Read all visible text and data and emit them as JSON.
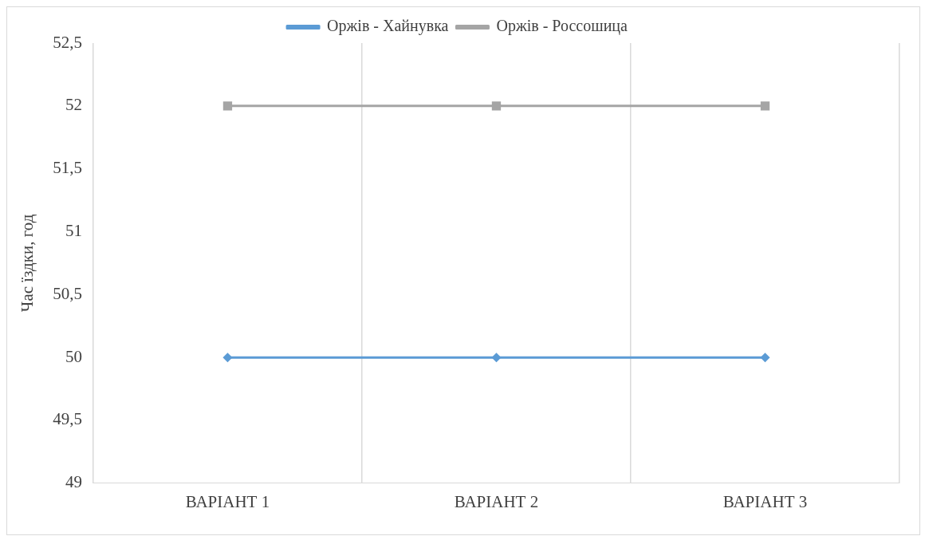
{
  "chart_data": {
    "type": "line",
    "ylabel": "Час їздки, год",
    "categories": [
      "ВАРІАНТ 1",
      "ВАРІАНТ 2",
      "ВАРІАНТ 3"
    ],
    "series": [
      {
        "name": "Оржів - Хайнувка",
        "color": "#5b9bd5",
        "marker": "diamond",
        "values": [
          50,
          50,
          50
        ]
      },
      {
        "name": "Оржів - Россошица",
        "color": "#a5a5a5",
        "marker": "square",
        "values": [
          52,
          52,
          52
        ]
      }
    ],
    "ylim": [
      49,
      52.5
    ],
    "yticks": [
      {
        "value": 49,
        "label": "49"
      },
      {
        "value": 49.5,
        "label": "49,5"
      },
      {
        "value": 50,
        "label": "50"
      },
      {
        "value": 50.5,
        "label": "50,5"
      },
      {
        "value": 51,
        "label": "51"
      },
      {
        "value": 51.5,
        "label": "51,5"
      },
      {
        "value": 52,
        "label": "52"
      },
      {
        "value": 52.5,
        "label": "52,5"
      }
    ],
    "grid": "x",
    "legend": "top",
    "line_style": "solid"
  }
}
